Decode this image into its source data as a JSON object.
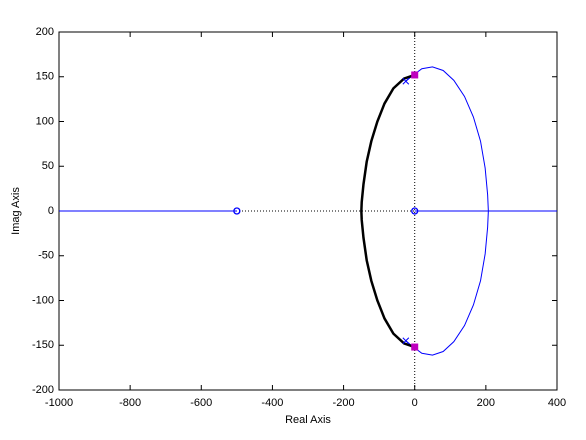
{
  "chart_data": {
    "type": "rootlocus",
    "xlabel": "Real Axis",
    "ylabel": "Imag Axis",
    "xlim": [
      -1000,
      400
    ],
    "ylim": [
      -200,
      200
    ],
    "xticks": [
      -1000,
      -800,
      -600,
      -400,
      -200,
      0,
      200,
      400
    ],
    "yticks": [
      -200,
      -150,
      -100,
      -50,
      0,
      50,
      100,
      150,
      200
    ],
    "series": [
      {
        "color": "#0000ff",
        "width": 1,
        "x": [
          -1000,
          -500
        ],
        "y": [
          0,
          0
        ]
      },
      {
        "color": "#0000ff",
        "width": 1,
        "x": [
          0,
          400
        ],
        "y": [
          0,
          0
        ]
      },
      {
        "color": "#0000ff",
        "width": 1,
        "x": [
          -25,
          -10,
          0,
          20,
          50,
          80,
          110,
          140,
          165,
          185,
          198,
          205,
          207,
          205,
          198,
          185,
          165,
          140,
          110,
          80,
          50,
          20,
          0,
          -10,
          -25
        ],
        "y": [
          145,
          150,
          153,
          159,
          161,
          157,
          146,
          128,
          105,
          78,
          48,
          18,
          0,
          -18,
          -48,
          -78,
          -105,
          -128,
          -146,
          -157,
          -161,
          -159,
          -153,
          -150,
          -145
        ]
      },
      {
        "color": "#000000",
        "width": 2.5,
        "x": [
          0,
          -30,
          -60,
          -85,
          -105,
          -122,
          -135,
          -144,
          -149,
          -150,
          -149,
          -144,
          -135,
          -122,
          -105,
          -85,
          -60,
          -30,
          0
        ],
        "y": [
          152,
          148,
          137,
          120,
          100,
          78,
          55,
          30,
          10,
          0,
          -10,
          -30,
          -55,
          -78,
          -100,
          -120,
          -137,
          -148,
          -152
        ]
      }
    ],
    "poles": {
      "color": "#0000ff",
      "x": [
        -25,
        -25
      ],
      "y": [
        145,
        -145
      ]
    },
    "zeros": {
      "color": "#0000ff",
      "x": [
        -500,
        0
      ],
      "y": [
        0,
        0
      ]
    },
    "selected": {
      "color": "#bf00bf",
      "x": [
        0,
        0
      ],
      "y": [
        152,
        -152
      ]
    }
  }
}
